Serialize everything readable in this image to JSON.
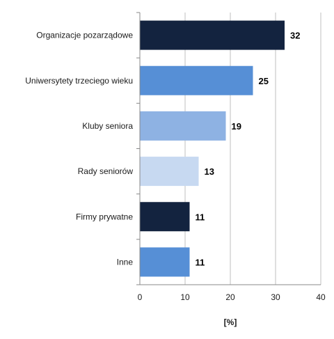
{
  "chart_data": {
    "type": "bar",
    "orientation": "horizontal",
    "categories": [
      "Organizacje pozarządowe",
      "Uniwersytety trzeciego wieku",
      "Kluby seniora",
      "Rady seniorów",
      "Firmy prywatne",
      "Inne"
    ],
    "values": [
      32,
      25,
      19,
      13,
      11,
      11
    ],
    "value_labels": [
      "32",
      "25",
      "19",
      "13",
      "11",
      "11"
    ],
    "bar_colors": [
      "#13233F",
      "#568FD6",
      "#8EB2E3",
      "#C7D9F1",
      "#13233F",
      "#568FD6"
    ],
    "xlabel": "[%]",
    "xlim": [
      0,
      40
    ],
    "xticks": [
      0,
      10,
      20,
      30,
      40
    ],
    "xtick_labels": [
      "0",
      "10",
      "20",
      "30",
      "40"
    ],
    "grid": "vertical",
    "legend": "none"
  }
}
